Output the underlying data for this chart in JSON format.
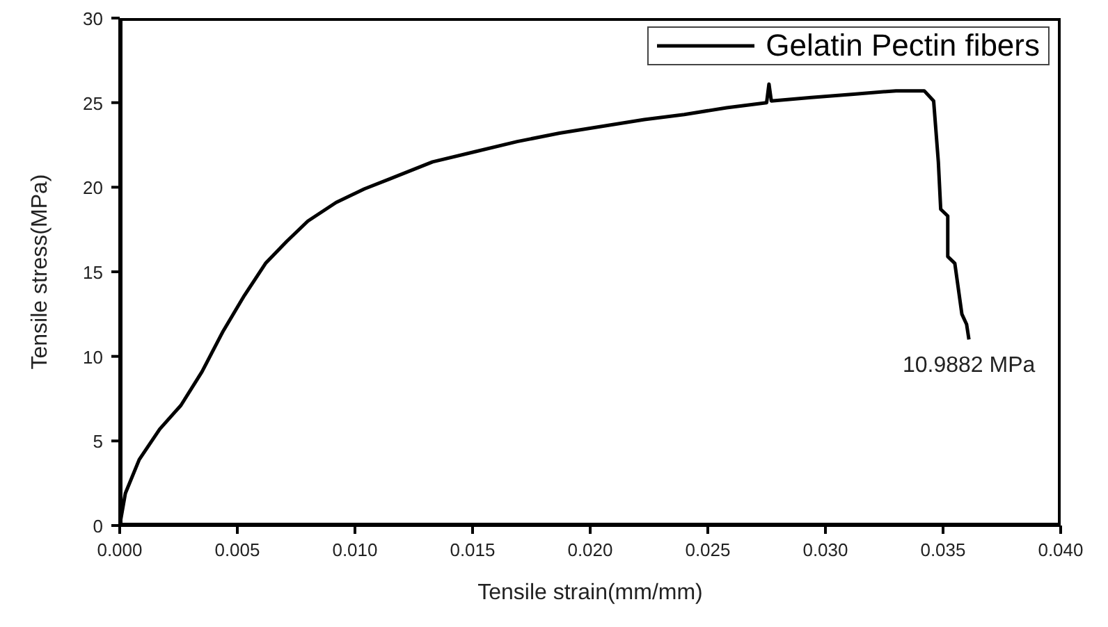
{
  "chart_data": {
    "type": "line",
    "xlabel": "Tensile strain(mm/mm)",
    "ylabel": "Tensile stress(MPa)",
    "xlim": [
      0,
      0.04
    ],
    "ylim": [
      0,
      30
    ],
    "xticks": [
      {
        "value": 0,
        "label": "0.000"
      },
      {
        "value": 0.005,
        "label": "0.005"
      },
      {
        "value": 0.01,
        "label": "0.010"
      },
      {
        "value": 0.015,
        "label": "0.015"
      },
      {
        "value": 0.02,
        "label": "0.020"
      },
      {
        "value": 0.025,
        "label": "0.025"
      },
      {
        "value": 0.03,
        "label": "0.030"
      },
      {
        "value": 0.035,
        "label": "0.035"
      },
      {
        "value": 0.04,
        "label": "0.040"
      }
    ],
    "yticks": [
      0,
      5,
      10,
      15,
      20,
      25,
      30
    ],
    "grid": false,
    "legend": "top right",
    "marker": "none",
    "line_style": "solid",
    "annotations": [
      {
        "text": "10.9882 MPa",
        "x": 0.0361,
        "y": 11
      }
    ],
    "series": [
      {
        "name": "Gelatin Pectin fibers",
        "color": "#000000",
        "x": [
          0,
          0.00024,
          0.00083,
          0.0017,
          0.0026,
          0.0035,
          0.0044,
          0.0053,
          0.0062,
          0.0071,
          0.008,
          0.0092,
          0.0104,
          0.0115,
          0.0133,
          0.0151,
          0.0169,
          0.0187,
          0.0205,
          0.0223,
          0.024,
          0.0258,
          0.0275,
          0.0276,
          0.0277,
          0.0294,
          0.0312,
          0.033,
          0.0342,
          0.0346,
          0.0348,
          0.0349,
          0.0352,
          0.0352,
          0.0355,
          0.0358,
          0.036,
          0.0361
        ],
        "values": [
          0,
          1.9,
          3.9,
          5.7,
          7.1,
          9.1,
          11.5,
          13.6,
          15.5,
          16.8,
          18,
          19.1,
          19.9,
          20.5,
          21.5,
          22.1,
          22.7,
          23.2,
          23.6,
          24,
          24.3,
          24.7,
          25,
          26.1,
          25.1,
          25.3,
          25.5,
          25.7,
          25.7,
          25.1,
          21.5,
          18.7,
          18.3,
          15.9,
          15.5,
          12.5,
          11.9,
          11
        ]
      }
    ]
  }
}
